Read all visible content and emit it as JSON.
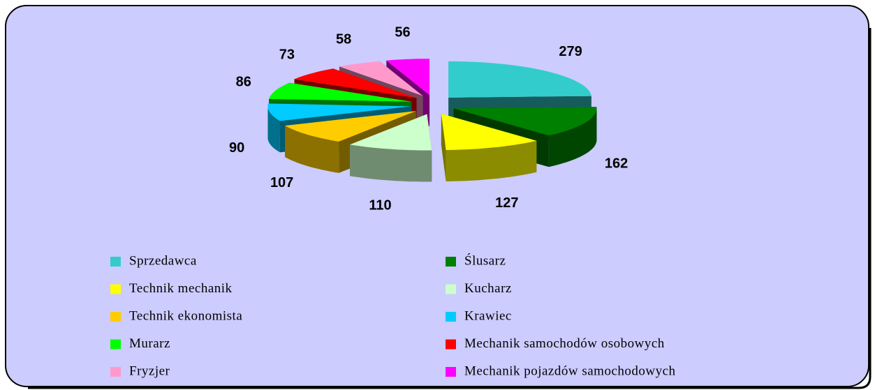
{
  "chart_data": {
    "type": "pie",
    "categories": [
      "Sprzedawca",
      "Ślusarz",
      "Technik mechanik",
      "Kucharz",
      "Technik ekonomista",
      "Krawiec",
      "Murarz",
      "Mechanik samochodów osobowych",
      "Fryzjer",
      "Mechanik pojazdów samochodowych"
    ],
    "values": [
      279,
      162,
      127,
      110,
      107,
      90,
      86,
      73,
      58,
      56
    ],
    "colors": [
      "#33cccc",
      "#008000",
      "#ffff00",
      "#ccffcc",
      "#ffcc00",
      "#00ccff",
      "#00ff00",
      "#ff0000",
      "#ff99cc",
      "#ff00ff"
    ],
    "legend": "bottom"
  }
}
